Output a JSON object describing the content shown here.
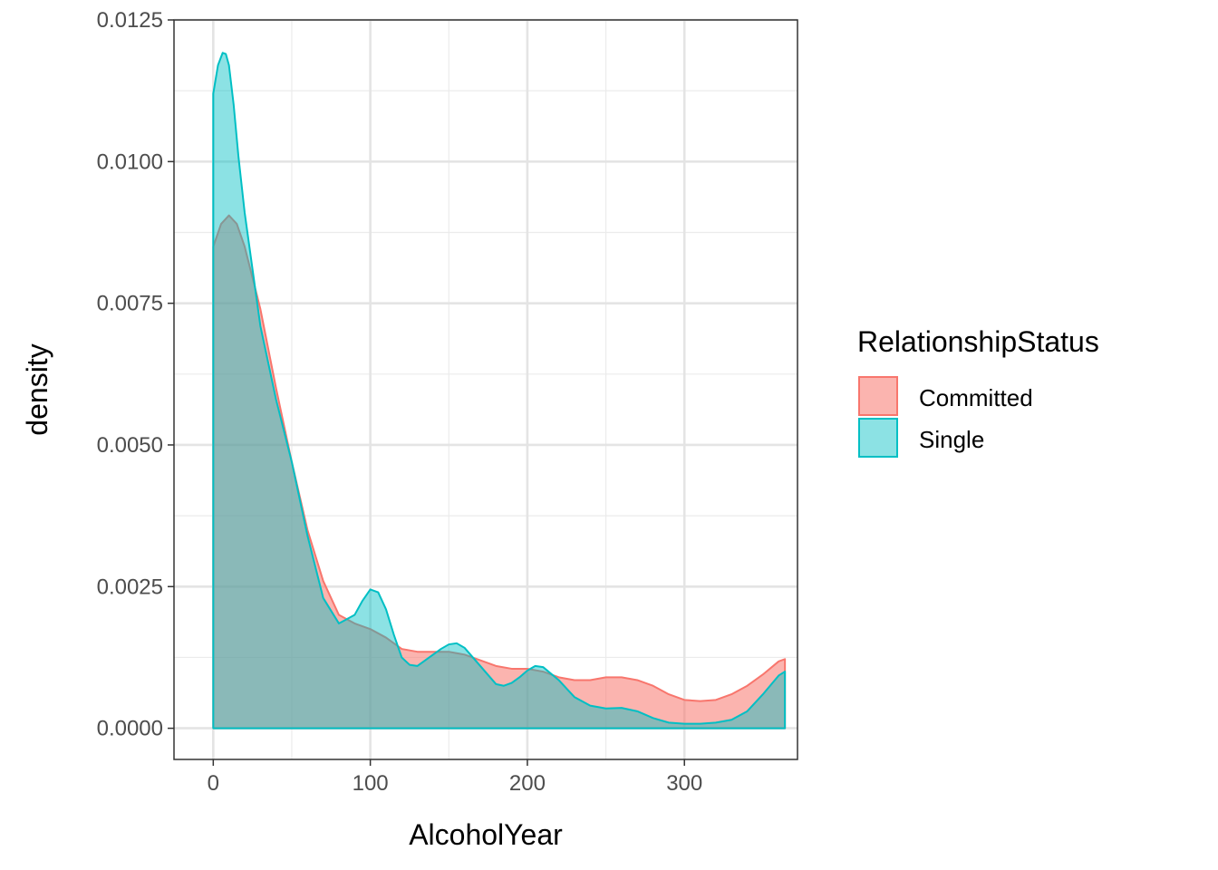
{
  "chart_data": {
    "type": "area",
    "xlabel": "AlcoholYear",
    "ylabel": "density",
    "xlim": [
      -25,
      372
    ],
    "ylim": [
      -0.00055,
      0.0125
    ],
    "x_ticks": [
      0,
      100,
      200,
      300
    ],
    "x_tick_labels": [
      "0",
      "100",
      "200",
      "300"
    ],
    "y_ticks": [
      0,
      0.0025,
      0.005,
      0.0075,
      0.01,
      0.0125
    ],
    "y_tick_labels": [
      "0.0000",
      "0.0025",
      "0.0050",
      "0.0075",
      "0.0100",
      "0.0125"
    ],
    "grid": true,
    "legend": {
      "title": "RelationshipStatus",
      "position": "right",
      "entries": [
        "Committed",
        "Single"
      ]
    },
    "series": [
      {
        "name": "Committed",
        "fill": "#F8766D",
        "stroke": "#F8766D",
        "x": [
          0,
          5,
          10,
          15,
          20,
          30,
          40,
          50,
          60,
          70,
          80,
          90,
          100,
          110,
          120,
          130,
          140,
          150,
          160,
          170,
          180,
          190,
          200,
          210,
          220,
          230,
          240,
          250,
          260,
          270,
          280,
          290,
          300,
          310,
          320,
          330,
          340,
          350,
          360,
          364
        ],
        "y": [
          0.0085,
          0.0089,
          0.00905,
          0.0089,
          0.0085,
          0.0074,
          0.006,
          0.0047,
          0.0035,
          0.0026,
          0.002,
          0.00185,
          0.00175,
          0.0016,
          0.0014,
          0.00135,
          0.00135,
          0.00135,
          0.0013,
          0.0012,
          0.0011,
          0.00105,
          0.00105,
          0.001,
          0.0009,
          0.00085,
          0.00085,
          0.0009,
          0.0009,
          0.00085,
          0.00075,
          0.0006,
          0.0005,
          0.00048,
          0.0005,
          0.0006,
          0.00075,
          0.00095,
          0.00118,
          0.00122
        ]
      },
      {
        "name": "Single",
        "fill": "#00BFC4",
        "stroke": "#00BFC4",
        "x": [
          0,
          3,
          6,
          8,
          10,
          13,
          16,
          20,
          25,
          30,
          40,
          50,
          60,
          70,
          80,
          90,
          95,
          100,
          105,
          110,
          115,
          120,
          125,
          130,
          135,
          140,
          145,
          150,
          155,
          160,
          170,
          180,
          185,
          190,
          195,
          200,
          205,
          210,
          220,
          230,
          240,
          250,
          260,
          270,
          280,
          290,
          300,
          310,
          320,
          330,
          340,
          350,
          360,
          364
        ],
        "y": [
          0.0112,
          0.0117,
          0.01192,
          0.0119,
          0.0117,
          0.011,
          0.0101,
          0.0091,
          0.0081,
          0.0071,
          0.0058,
          0.0047,
          0.0034,
          0.0023,
          0.00185,
          0.002,
          0.00225,
          0.00245,
          0.0024,
          0.0021,
          0.00165,
          0.00125,
          0.00112,
          0.0011,
          0.0012,
          0.0013,
          0.0014,
          0.00148,
          0.0015,
          0.00142,
          0.0011,
          0.00078,
          0.00075,
          0.0008,
          0.0009,
          0.00102,
          0.0011,
          0.00108,
          0.00085,
          0.00055,
          0.0004,
          0.00035,
          0.00036,
          0.0003,
          0.00018,
          0.0001,
          8e-05,
          8e-05,
          0.0001,
          0.00015,
          0.0003,
          0.0006,
          0.00093,
          0.001
        ]
      }
    ]
  }
}
